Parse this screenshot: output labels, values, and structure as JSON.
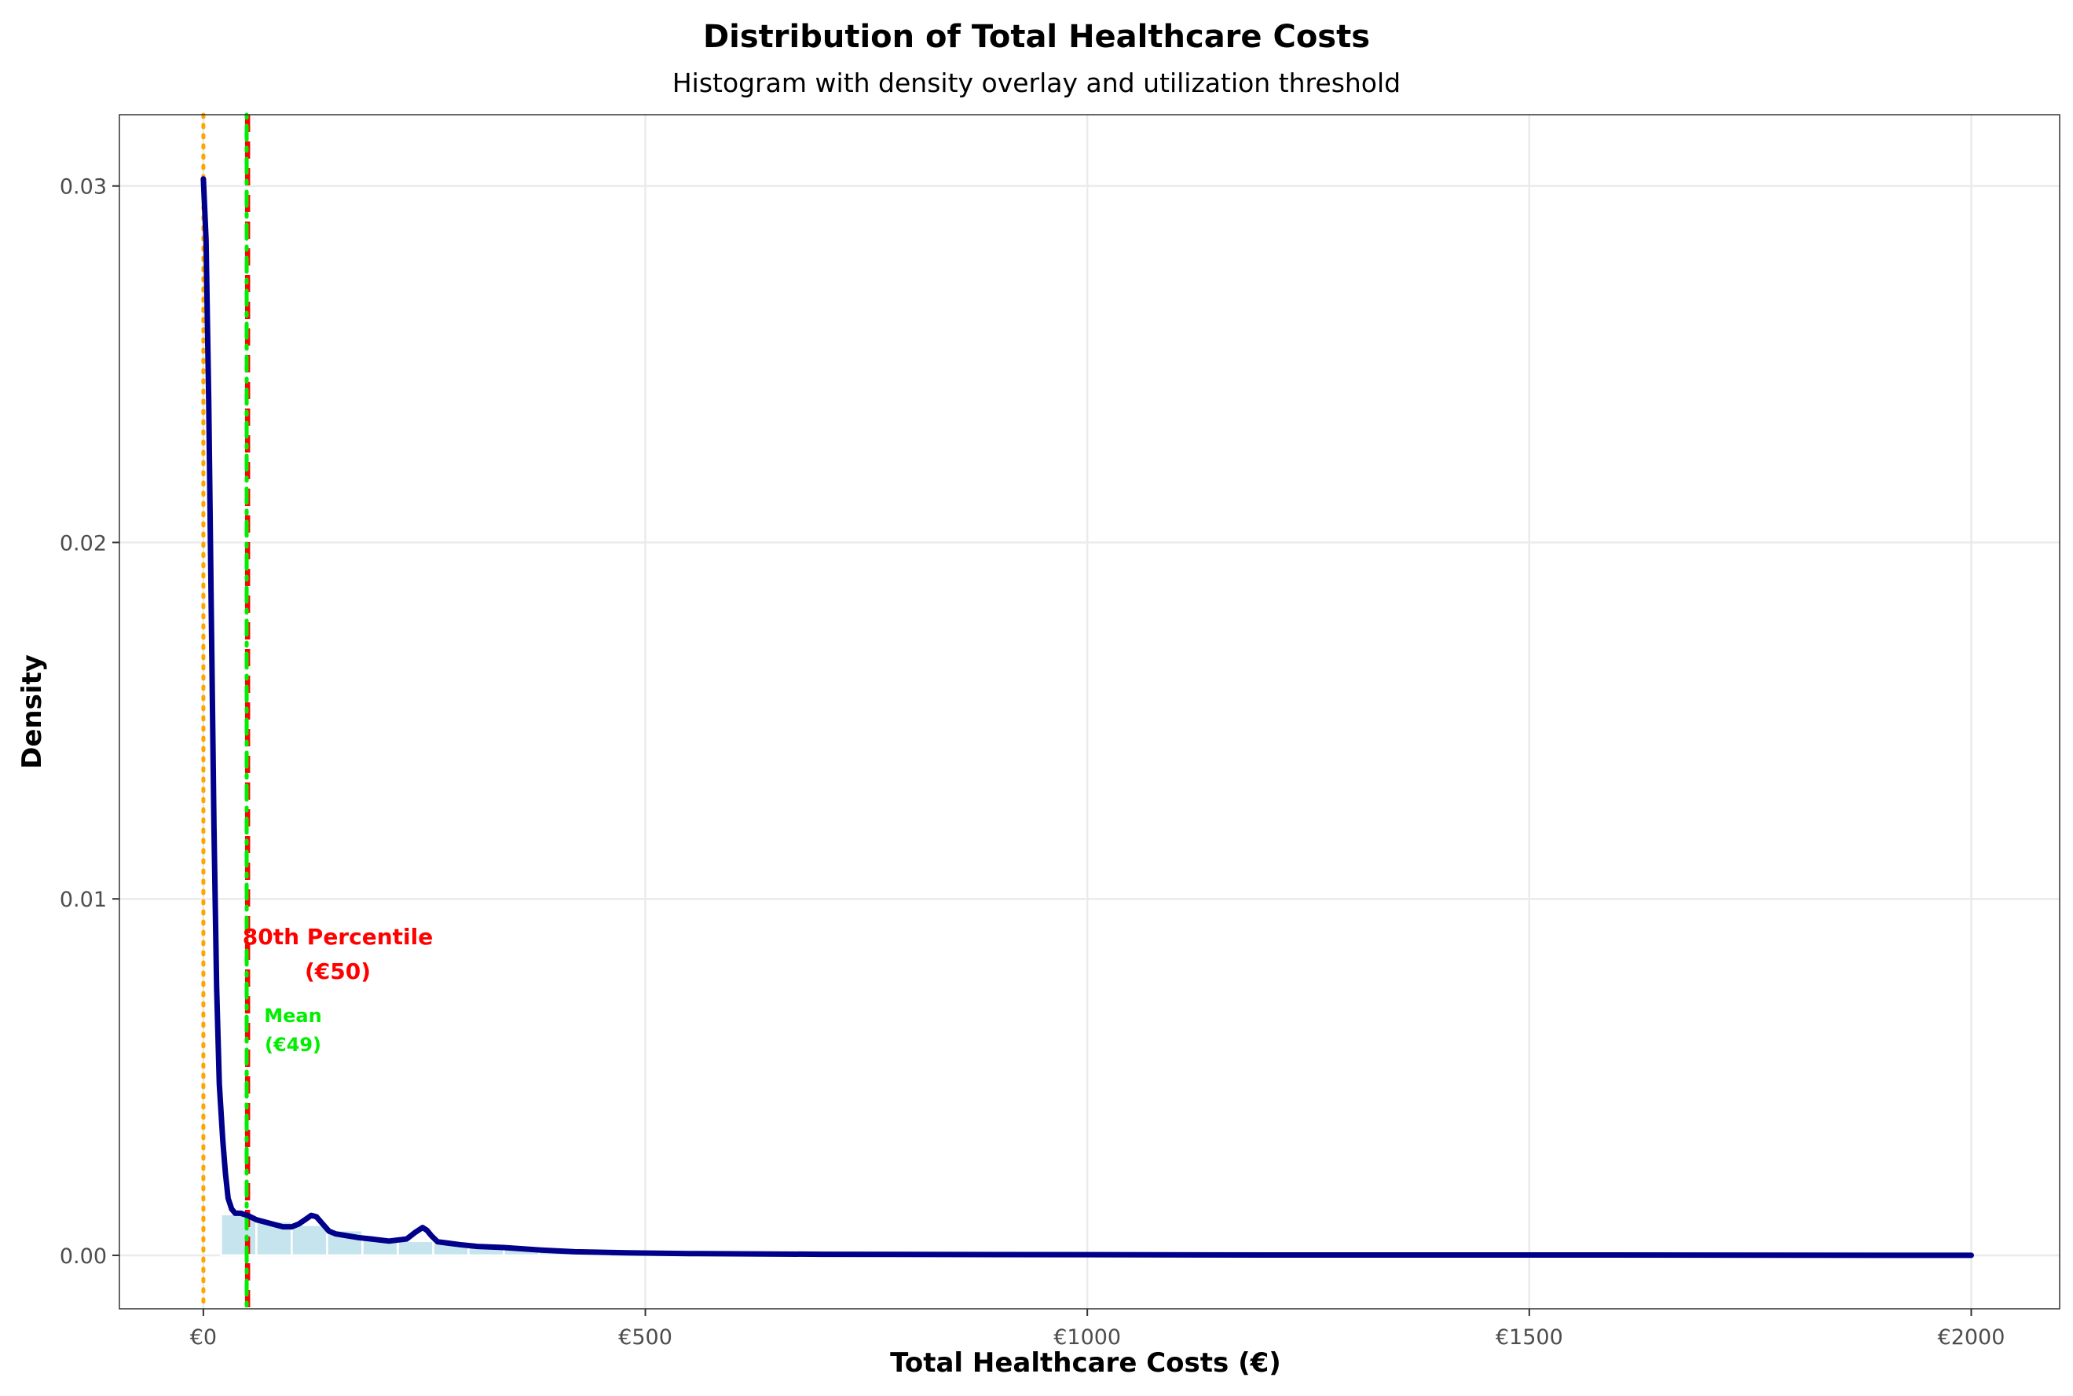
{
  "chart_data": {
    "type": "histogram+density",
    "title": "Distribution of Total Healthcare Costs",
    "subtitle": "Histogram with density overlay and utilization threshold",
    "xlabel": "Total Healthcare Costs (€)",
    "ylabel": "Density",
    "xlim": [
      -95,
      2100
    ],
    "ylim": [
      -0.0015,
      0.032
    ],
    "x_ticks": [
      0,
      500,
      1000,
      1500,
      2000
    ],
    "x_tick_labels": [
      "€0",
      "€500",
      "€1000",
      "€1500",
      "€2000"
    ],
    "y_ticks": [
      0.0,
      0.01,
      0.02,
      0.03
    ],
    "y_tick_labels": [
      "0.00",
      "0.01",
      "0.02",
      "0.03"
    ],
    "grid": true,
    "histogram": {
      "bin_width": 40,
      "bins": [
        {
          "x0": 20,
          "x1": 60,
          "density": 0.00115
        },
        {
          "x0": 60,
          "x1": 100,
          "density": 0.00095
        },
        {
          "x0": 100,
          "x1": 140,
          "density": 0.00085
        },
        {
          "x0": 140,
          "x1": 180,
          "density": 0.0007
        },
        {
          "x0": 180,
          "x1": 220,
          "density": 0.0005
        },
        {
          "x0": 220,
          "x1": 260,
          "density": 0.0004
        },
        {
          "x0": 260,
          "x1": 300,
          "density": 0.00035
        },
        {
          "x0": 300,
          "x1": 340,
          "density": 0.0003
        },
        {
          "x0": 340,
          "x1": 380,
          "density": 0.00025
        },
        {
          "x0": 380,
          "x1": 420,
          "density": 0.00012
        },
        {
          "x0": 420,
          "x1": 460,
          "density": 8e-05
        }
      ],
      "fill": "#add8e6"
    },
    "density_curve": {
      "color": "#00008b",
      "x": [
        0,
        3,
        6,
        9,
        12,
        15,
        18,
        22,
        25,
        28,
        32,
        36,
        42,
        50,
        60,
        75,
        90,
        100,
        108,
        115,
        122,
        128,
        135,
        142,
        150,
        160,
        175,
        190,
        210,
        230,
        240,
        248,
        253,
        258,
        265,
        275,
        290,
        310,
        340,
        380,
        420,
        480,
        550,
        700,
        900,
        1200,
        1600,
        2000
      ],
      "y": [
        0.0302,
        0.0285,
        0.024,
        0.018,
        0.012,
        0.0075,
        0.0048,
        0.0032,
        0.0023,
        0.0016,
        0.0013,
        0.00118,
        0.00118,
        0.00112,
        0.001,
        0.0009,
        0.0008,
        0.0008,
        0.00088,
        0.001,
        0.00112,
        0.00108,
        0.00088,
        0.00068,
        0.0006,
        0.00056,
        0.0005,
        0.00046,
        0.0004,
        0.00046,
        0.00065,
        0.00078,
        0.0007,
        0.00055,
        0.00038,
        0.00035,
        0.0003,
        0.00025,
        0.00022,
        0.00015,
        0.0001,
        7e-05,
        5e-05,
        3e-05,
        2e-05,
        1e-05,
        1e-05,
        0.0
      ]
    },
    "reference_lines": [
      {
        "name": "zero",
        "x": 0,
        "color": "#ffa500",
        "style": "dotted"
      },
      {
        "name": "80th-percentile",
        "x": 50,
        "color": "#ff0000",
        "style": "dashed"
      },
      {
        "name": "mean",
        "x": 49,
        "color": "#00ee00",
        "style": "dotdash"
      }
    ],
    "annotations": [
      {
        "name": "p80",
        "line1": "80th Percentile",
        "line2": "(€50)",
        "color": "#ff0000"
      },
      {
        "name": "mean",
        "line1": "Mean",
        "line2": "(€49)",
        "color": "#00ee00"
      }
    ]
  }
}
